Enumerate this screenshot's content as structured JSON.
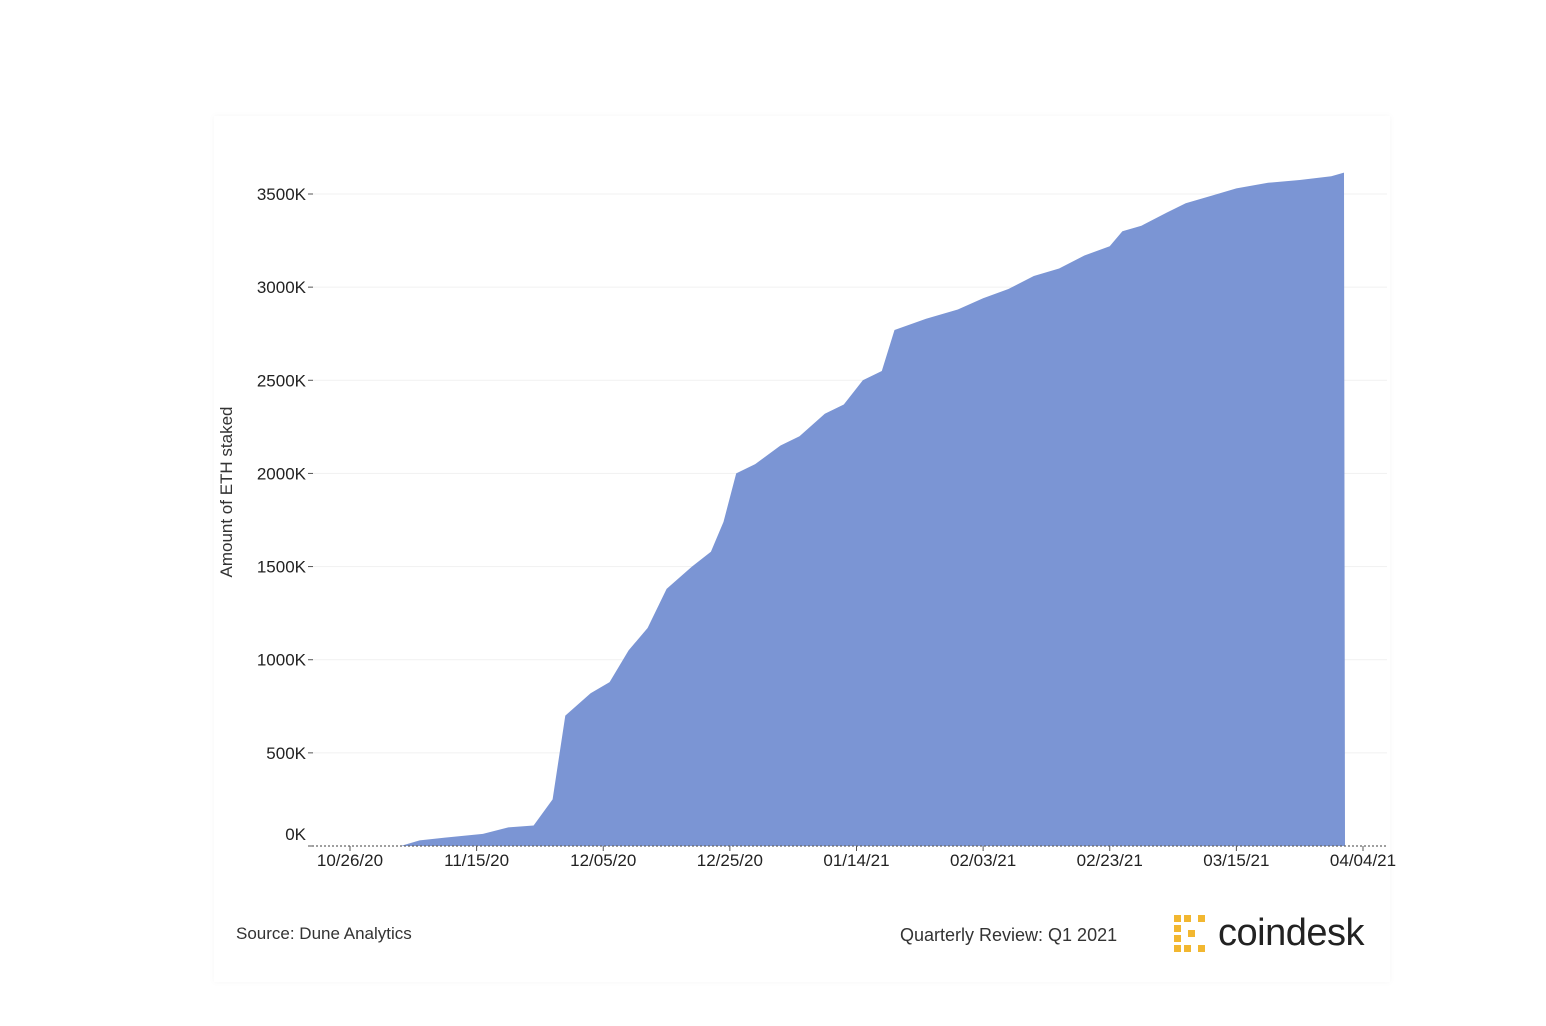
{
  "chart_data": {
    "type": "area",
    "title": "",
    "xlabel": "",
    "ylabel": "Amount of ETH staked",
    "x_start": "10/20/20",
    "x_end": "04/04/21",
    "ylim": [
      0,
      3600000
    ],
    "y_ticks": [
      0,
      500000,
      1000000,
      1500000,
      2000000,
      2500000,
      3000000,
      3500000
    ],
    "y_tick_labels": [
      "0K",
      "500K",
      "1000K",
      "1500K",
      "2000K",
      "2500K",
      "3000K",
      "3500K"
    ],
    "x_tick_labels": [
      "10/26/20",
      "11/15/20",
      "12/05/20",
      "12/25/20",
      "01/14/21",
      "02/03/21",
      "02/23/21",
      "03/15/21",
      "04/04/21"
    ],
    "x_tick_dates": [
      "10/26/20",
      "11/15/20",
      "12/05/20",
      "12/25/20",
      "01/14/21",
      "02/03/21",
      "02/23/21",
      "03/15/21",
      "04/04/21"
    ],
    "series": [
      {
        "color": "#7b95d4",
        "points": [
          [
            "11/03/20",
            0
          ],
          [
            "11/06/20",
            30000
          ],
          [
            "11/10/20",
            45000
          ],
          [
            "11/16/20",
            65000
          ],
          [
            "11/20/20",
            100000
          ],
          [
            "11/24/20",
            110000
          ],
          [
            "11/27/20",
            250000
          ],
          [
            "11/29/20",
            700000
          ],
          [
            "12/03/20",
            820000
          ],
          [
            "12/06/20",
            880000
          ],
          [
            "12/09/20",
            1050000
          ],
          [
            "12/12/20",
            1170000
          ],
          [
            "12/15/20",
            1380000
          ],
          [
            "12/19/20",
            1500000
          ],
          [
            "12/22/20",
            1580000
          ],
          [
            "12/24/20",
            1740000
          ],
          [
            "12/26/20",
            2000000
          ],
          [
            "12/29/20",
            2050000
          ],
          [
            "01/02/21",
            2150000
          ],
          [
            "01/05/21",
            2200000
          ],
          [
            "01/09/21",
            2320000
          ],
          [
            "01/12/21",
            2370000
          ],
          [
            "01/15/21",
            2500000
          ],
          [
            "01/18/21",
            2550000
          ],
          [
            "01/20/21",
            2770000
          ],
          [
            "01/25/21",
            2830000
          ],
          [
            "01/30/21",
            2880000
          ],
          [
            "02/03/21",
            2940000
          ],
          [
            "02/07/21",
            2990000
          ],
          [
            "02/11/21",
            3060000
          ],
          [
            "02/15/21",
            3100000
          ],
          [
            "02/19/21",
            3170000
          ],
          [
            "02/23/21",
            3220000
          ],
          [
            "02/25/21",
            3300000
          ],
          [
            "02/28/21",
            3330000
          ],
          [
            "03/04/21",
            3400000
          ],
          [
            "03/07/21",
            3450000
          ],
          [
            "03/11/21",
            3490000
          ],
          [
            "03/15/21",
            3530000
          ],
          [
            "03/20/21",
            3560000
          ],
          [
            "03/25/21",
            3575000
          ],
          [
            "03/30/21",
            3595000
          ],
          [
            "04/01/21",
            3615000
          ]
        ]
      }
    ]
  },
  "footer": {
    "source": "Source: Dune Analytics",
    "review": "Quarterly Review: Q1 2021",
    "logo_text": "coindesk"
  },
  "colors": {
    "area_fill": "#7b95d4",
    "logo_mark": "#f2b730"
  }
}
